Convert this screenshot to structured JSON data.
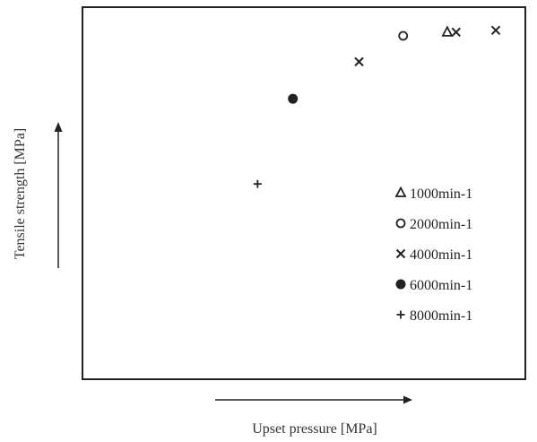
{
  "chart_data": {
    "type": "scatter",
    "xlabel": "Upset pressure [MPa]",
    "ylabel": "Tensile strength [MPa]",
    "xlim": [
      0,
      100
    ],
    "ylim": [
      0,
      100
    ],
    "grid": false,
    "legend_position": "right",
    "series": [
      {
        "name": "1000min-1",
        "marker": "triangle",
        "points": [
          [
            82.5,
            93.5
          ]
        ]
      },
      {
        "name": "2000min-1",
        "marker": "circle-open",
        "points": [
          [
            72.5,
            92.5
          ]
        ]
      },
      {
        "name": "4000min-1",
        "marker": "cross",
        "points": [
          [
            62.5,
            85.5
          ],
          [
            84.5,
            93.5
          ],
          [
            93.5,
            94
          ]
        ]
      },
      {
        "name": "6000min-1",
        "marker": "circle-filled",
        "points": [
          [
            47.5,
            75.5
          ]
        ]
      },
      {
        "name": "8000min-1",
        "marker": "plus",
        "points": [
          [
            39.5,
            52.5
          ]
        ]
      }
    ]
  }
}
